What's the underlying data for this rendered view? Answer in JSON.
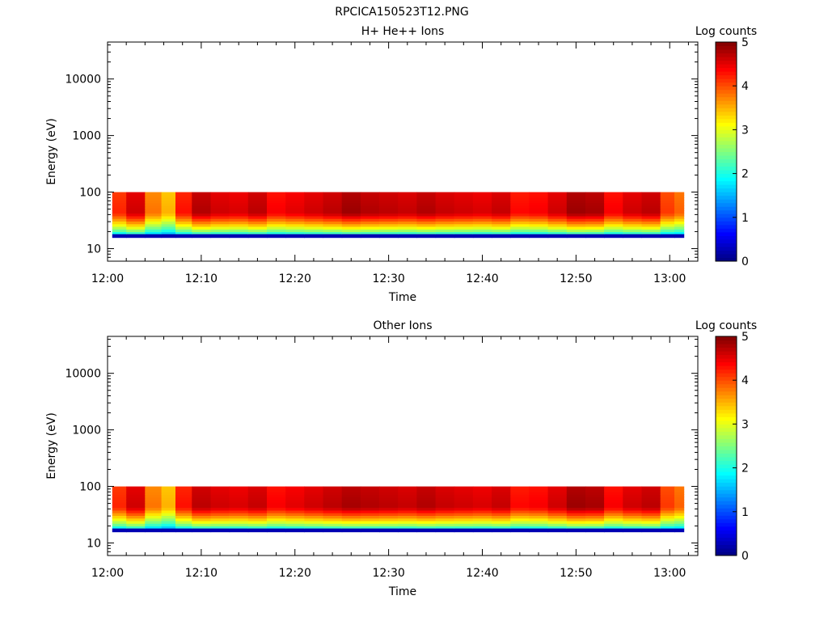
{
  "page_title": "RPCICA150523T12.PNG",
  "chart_data": [
    {
      "type": "heatmap",
      "title": "H+ He++ Ions",
      "xlabel": "Time",
      "ylabel": "Energy (eV)",
      "y_scale": "log",
      "ylim": [
        6,
        45000
      ],
      "xlim": [
        "12:00",
        "13:03"
      ],
      "x_ticks": [
        "12:00",
        "12:10",
        "12:20",
        "12:30",
        "12:40",
        "12:50",
        "13:00"
      ],
      "y_ticks": [
        "10",
        "100",
        "1000",
        "10000"
      ],
      "colorbar": {
        "label": "Log counts",
        "range": [
          0,
          5
        ],
        "ticks": [
          "0",
          "1",
          "2",
          "3",
          "4",
          "5"
        ],
        "colormap": "jet"
      },
      "energy_range": [
        18,
        100
      ],
      "intensity_by_time": [
        {
          "t": "12:01",
          "v": 4.2
        },
        {
          "t": "12:03",
          "v": 4.6
        },
        {
          "t": "12:05",
          "v": 3.8
        },
        {
          "t": "12:06.5",
          "v": 3.5
        },
        {
          "t": "12:08",
          "v": 4.3
        },
        {
          "t": "12:10",
          "v": 4.75
        },
        {
          "t": "12:12",
          "v": 4.6
        },
        {
          "t": "12:14",
          "v": 4.55
        },
        {
          "t": "12:16",
          "v": 4.7
        },
        {
          "t": "12:18",
          "v": 4.4
        },
        {
          "t": "12:20",
          "v": 4.5
        },
        {
          "t": "12:22",
          "v": 4.6
        },
        {
          "t": "12:24",
          "v": 4.7
        },
        {
          "t": "12:26",
          "v": 4.85
        },
        {
          "t": "12:28",
          "v": 4.75
        },
        {
          "t": "12:30",
          "v": 4.7
        },
        {
          "t": "12:32",
          "v": 4.65
        },
        {
          "t": "12:34",
          "v": 4.75
        },
        {
          "t": "12:36",
          "v": 4.65
        },
        {
          "t": "12:38",
          "v": 4.6
        },
        {
          "t": "12:40",
          "v": 4.55
        },
        {
          "t": "12:42",
          "v": 4.65
        },
        {
          "t": "12:44",
          "v": 4.35
        },
        {
          "t": "12:46",
          "v": 4.4
        },
        {
          "t": "12:48",
          "v": 4.6
        },
        {
          "t": "12:50",
          "v": 4.85
        },
        {
          "t": "12:52",
          "v": 4.8
        },
        {
          "t": "12:54",
          "v": 4.4
        },
        {
          "t": "12:56",
          "v": 4.6
        },
        {
          "t": "12:58",
          "v": 4.7
        },
        {
          "t": "13:00",
          "v": 4.1
        },
        {
          "t": "13:01",
          "v": 3.9
        }
      ]
    },
    {
      "type": "heatmap",
      "title": "Other Ions",
      "xlabel": "Time",
      "ylabel": "Energy (eV)",
      "y_scale": "log",
      "ylim": [
        6,
        45000
      ],
      "xlim": [
        "12:00",
        "13:03"
      ],
      "x_ticks": [
        "12:00",
        "12:10",
        "12:20",
        "12:30",
        "12:40",
        "12:50",
        "13:00"
      ],
      "y_ticks": [
        "10",
        "100",
        "1000",
        "10000"
      ],
      "colorbar": {
        "label": "Log counts",
        "range": [
          0,
          5
        ],
        "ticks": [
          "0",
          "1",
          "2",
          "3",
          "4",
          "5"
        ],
        "colormap": "jet"
      },
      "energy_range": [
        18,
        100
      ],
      "intensity_by_time": [
        {
          "t": "12:01",
          "v": 4.2
        },
        {
          "t": "12:03",
          "v": 4.6
        },
        {
          "t": "12:05",
          "v": 3.8
        },
        {
          "t": "12:06.5",
          "v": 3.5
        },
        {
          "t": "12:08",
          "v": 4.3
        },
        {
          "t": "12:10",
          "v": 4.7
        },
        {
          "t": "12:12",
          "v": 4.6
        },
        {
          "t": "12:14",
          "v": 4.55
        },
        {
          "t": "12:16",
          "v": 4.65
        },
        {
          "t": "12:18",
          "v": 4.4
        },
        {
          "t": "12:20",
          "v": 4.5
        },
        {
          "t": "12:22",
          "v": 4.6
        },
        {
          "t": "12:24",
          "v": 4.7
        },
        {
          "t": "12:26",
          "v": 4.8
        },
        {
          "t": "12:28",
          "v": 4.75
        },
        {
          "t": "12:30",
          "v": 4.7
        },
        {
          "t": "12:32",
          "v": 4.65
        },
        {
          "t": "12:34",
          "v": 4.75
        },
        {
          "t": "12:36",
          "v": 4.65
        },
        {
          "t": "12:38",
          "v": 4.6
        },
        {
          "t": "12:40",
          "v": 4.55
        },
        {
          "t": "12:42",
          "v": 4.65
        },
        {
          "t": "12:44",
          "v": 4.35
        },
        {
          "t": "12:46",
          "v": 4.4
        },
        {
          "t": "12:48",
          "v": 4.6
        },
        {
          "t": "12:50",
          "v": 4.85
        },
        {
          "t": "12:52",
          "v": 4.8
        },
        {
          "t": "12:54",
          "v": 4.4
        },
        {
          "t": "12:56",
          "v": 4.6
        },
        {
          "t": "12:58",
          "v": 4.7
        },
        {
          "t": "13:00",
          "v": 4.1
        },
        {
          "t": "13:01",
          "v": 3.9
        }
      ]
    }
  ]
}
